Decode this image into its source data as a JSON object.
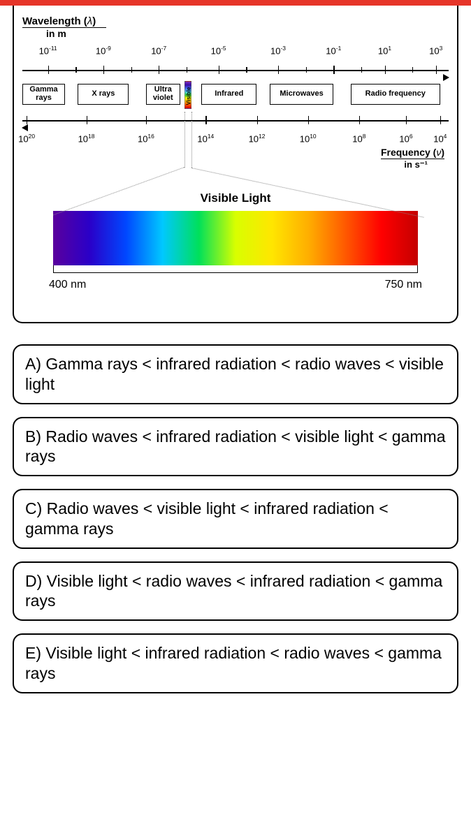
{
  "top_bar_color": "#e63529",
  "wavelength": {
    "title_main": "Wavelength (",
    "title_lambda": "λ",
    "title_close": ")",
    "subtitle": "in m",
    "ticks": [
      {
        "base": "10",
        "exp": "-11",
        "pos_pct": 6
      },
      {
        "base": "10",
        "exp": "-9",
        "pos_pct": 19
      },
      {
        "base": "10",
        "exp": "-7",
        "pos_pct": 32
      },
      {
        "base": "10",
        "exp": "-5",
        "pos_pct": 46
      },
      {
        "base": "10",
        "exp": "-3",
        "pos_pct": 60
      },
      {
        "base": "10",
        "exp": "-1",
        "pos_pct": 73
      },
      {
        "base": "10",
        "exp": "1",
        "pos_pct": 85
      },
      {
        "base": "10",
        "exp": "3",
        "pos_pct": 97
      }
    ]
  },
  "regions": [
    {
      "label": "Gamma\nrays",
      "left_pct": 0,
      "width_pct": 10
    },
    {
      "label": "X rays",
      "left_pct": 13,
      "width_pct": 12
    },
    {
      "label": "Ultra\nviolet",
      "left_pct": 29,
      "width_pct": 8
    },
    {
      "label": "Infrared",
      "left_pct": 42,
      "width_pct": 13
    },
    {
      "label": "Microwaves",
      "left_pct": 58,
      "width_pct": 15
    },
    {
      "label": "Radio frequency",
      "left_pct": 77,
      "width_pct": 21
    }
  ],
  "visible_strip": {
    "left_pct": 38,
    "label": "Visible"
  },
  "frequency": {
    "title_main": "Frequency (",
    "title_nu": "ν",
    "title_close": ")",
    "subtitle": "in s⁻¹",
    "ticks": [
      {
        "base": "10",
        "exp": "20",
        "pos_pct": 1
      },
      {
        "base": "10",
        "exp": "18",
        "pos_pct": 15
      },
      {
        "base": "10",
        "exp": "16",
        "pos_pct": 29
      },
      {
        "base": "10",
        "exp": "14",
        "pos_pct": 43
      },
      {
        "base": "10",
        "exp": "12",
        "pos_pct": 55
      },
      {
        "base": "10",
        "exp": "10",
        "pos_pct": 67
      },
      {
        "base": "10",
        "exp": "8",
        "pos_pct": 79
      },
      {
        "base": "10",
        "exp": "6",
        "pos_pct": 90
      },
      {
        "base": "10",
        "exp": "4",
        "pos_pct": 98
      }
    ]
  },
  "visible_light": {
    "title": "Visible Light",
    "left_label": "400 nm",
    "right_label": "750 nm"
  },
  "answers": [
    "A) Gamma rays < infrared radiation < radio waves < visible light",
    "B) Radio waves < infrared radiation < visible light < gamma rays",
    "C) Radio waves < visible light < infrared radiation < gamma rays",
    "D) Visible light < radio waves < infrared radiation < gamma rays",
    "E) Visible light < infrared radiation < radio waves < gamma rays"
  ]
}
